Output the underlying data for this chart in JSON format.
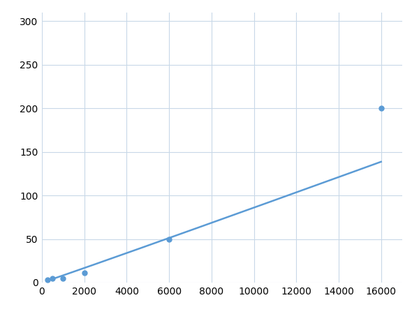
{
  "x": [
    250,
    500,
    1000,
    2000,
    6000,
    16000
  ],
  "y": [
    3,
    5,
    5,
    11,
    50,
    200
  ],
  "line_color": "#5b9bd5",
  "marker_color": "#5b9bd5",
  "marker_size": 5,
  "line_width": 1.8,
  "xlim": [
    0,
    17000
  ],
  "ylim": [
    0,
    310
  ],
  "xticks": [
    0,
    2000,
    4000,
    6000,
    8000,
    10000,
    12000,
    14000,
    16000
  ],
  "yticks": [
    0,
    50,
    100,
    150,
    200,
    250,
    300
  ],
  "grid_color": "#c8d8e8",
  "background_color": "#ffffff",
  "tick_fontsize": 10
}
